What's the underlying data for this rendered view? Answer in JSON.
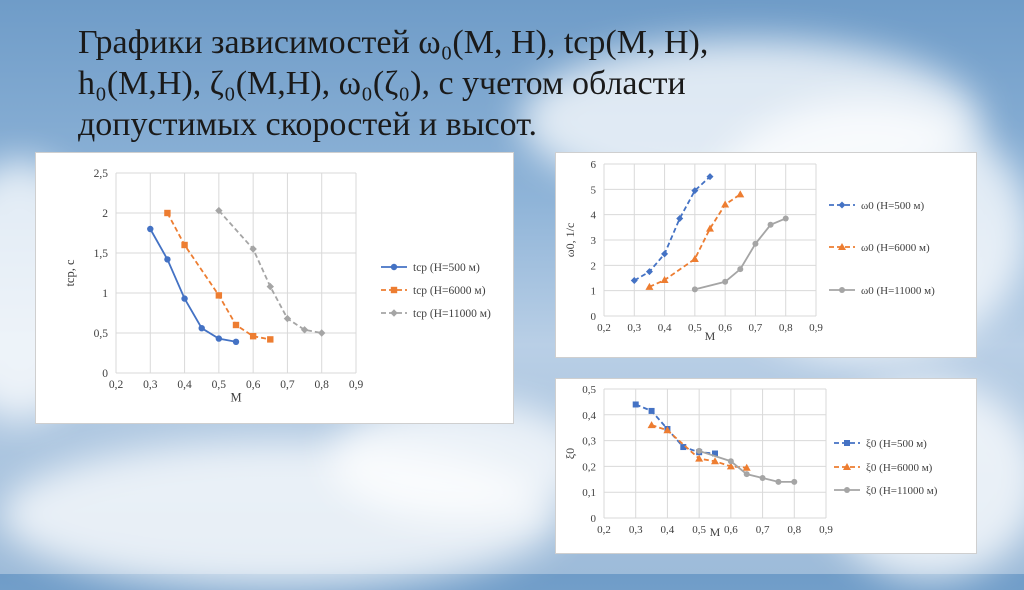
{
  "title": {
    "line1": "Графики зависимостей ω₀(M, H),  tср(M, H),",
    "line2": "h₀(M,H), ζ₀(M,H), ω₀(ζ₀), с учетом области",
    "line3": "допустимых скоростей и высот."
  },
  "chart_data": [
    {
      "type": "line",
      "xlabel": "M",
      "ylabel": "tср, с",
      "xlim": [
        0.2,
        0.9
      ],
      "ylim": [
        0,
        2.5
      ],
      "xticks": [
        "0,2",
        "0,3",
        "0,4",
        "0,5",
        "0,6",
        "0,7",
        "0,8",
        "0,9"
      ],
      "yticks": [
        "0",
        "0,5",
        "1",
        "1,5",
        "2",
        "2,5"
      ],
      "legend_position": "right",
      "series": [
        {
          "name": "tср (H=500 м)",
          "color": "#4472c4",
          "marker": "circle",
          "dash": "solid",
          "x": [
            0.3,
            0.35,
            0.4,
            0.45,
            0.5,
            0.55
          ],
          "y": [
            1.8,
            1.42,
            0.93,
            0.56,
            0.43,
            0.39
          ]
        },
        {
          "name": "tср (H=6000 м)",
          "color": "#ed7d31",
          "marker": "square",
          "dash": "dash",
          "x": [
            0.35,
            0.4,
            0.5,
            0.55,
            0.6,
            0.65
          ],
          "y": [
            2.0,
            1.6,
            0.97,
            0.6,
            0.46,
            0.42
          ]
        },
        {
          "name": "tср (H=11000 м)",
          "color": "#a5a5a5",
          "marker": "diamond",
          "dash": "dash",
          "x": [
            0.5,
            0.6,
            0.65,
            0.7,
            0.75,
            0.8
          ],
          "y": [
            2.03,
            1.55,
            1.08,
            0.68,
            0.54,
            0.5
          ]
        }
      ]
    },
    {
      "type": "line",
      "xlabel": "M",
      "ylabel": "ω0, 1/с",
      "xlim": [
        0.2,
        0.9
      ],
      "ylim": [
        0,
        6
      ],
      "xticks": [
        "0,2",
        "0,3",
        "0,4",
        "0,5",
        "0,6",
        "0,7",
        "0,8",
        "0,9"
      ],
      "yticks": [
        "0",
        "1",
        "2",
        "3",
        "4",
        "5",
        "6"
      ],
      "legend_position": "right",
      "series": [
        {
          "name": "ω0 (H=500 м)",
          "color": "#4472c4",
          "marker": "diamond",
          "dash": "dash",
          "x": [
            0.3,
            0.35,
            0.4,
            0.45,
            0.5,
            0.55
          ],
          "y": [
            1.4,
            1.75,
            2.45,
            3.85,
            4.95,
            5.5
          ]
        },
        {
          "name": "ω0 (H=6000 м)",
          "color": "#ed7d31",
          "marker": "triangle",
          "dash": "dash",
          "x": [
            0.35,
            0.4,
            0.5,
            0.55,
            0.6,
            0.65
          ],
          "y": [
            1.15,
            1.42,
            2.25,
            3.45,
            4.4,
            4.8
          ]
        },
        {
          "name": "ω0 (H=11000 м)",
          "color": "#a5a5a5",
          "marker": "circle",
          "dash": "solid",
          "x": [
            0.5,
            0.6,
            0.65,
            0.7,
            0.75,
            0.8
          ],
          "y": [
            1.05,
            1.35,
            1.85,
            2.85,
            3.6,
            3.85
          ]
        }
      ]
    },
    {
      "type": "line",
      "xlabel": "M",
      "ylabel": "ξ0",
      "xlim": [
        0.2,
        0.9
      ],
      "ylim": [
        0,
        0.5
      ],
      "xticks": [
        "0,2",
        "0,3",
        "0,4",
        "0,5",
        "0,6",
        "0,7",
        "0,8",
        "0,9"
      ],
      "yticks": [
        "0",
        "0,1",
        "0,2",
        "0,3",
        "0,4",
        "0,5"
      ],
      "legend_position": "right",
      "series": [
        {
          "name": "ξ0 (H=500 м)",
          "color": "#4472c4",
          "marker": "square",
          "dash": "dash",
          "x": [
            0.3,
            0.35,
            0.4,
            0.45,
            0.5,
            0.55
          ],
          "y": [
            0.44,
            0.415,
            0.345,
            0.275,
            0.255,
            0.25
          ]
        },
        {
          "name": "ξ0 (H=6000 м)",
          "color": "#ed7d31",
          "marker": "triangle",
          "dash": "dash",
          "x": [
            0.35,
            0.4,
            0.5,
            0.55,
            0.6,
            0.65
          ],
          "y": [
            0.36,
            0.34,
            0.23,
            0.22,
            0.2,
            0.195
          ]
        },
        {
          "name": "ξ0 (H=11000 м)",
          "color": "#a5a5a5",
          "marker": "circle",
          "dash": "solid",
          "x": [
            0.5,
            0.6,
            0.65,
            0.7,
            0.75,
            0.8
          ],
          "y": [
            0.26,
            0.22,
            0.17,
            0.155,
            0.14,
            0.14
          ]
        }
      ]
    }
  ]
}
